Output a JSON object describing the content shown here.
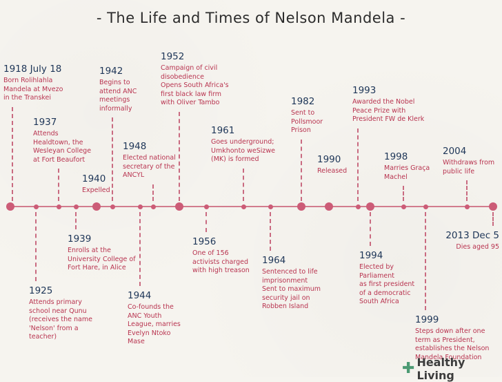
{
  "title": "- The Life and Times of Nelson Mandela -",
  "events": [
    {
      "year": "1918 July 18",
      "desc": [
        "Born Rolihlahla",
        "Mandela at Mvezo",
        "in the Transkei"
      ]
    },
    {
      "year": "1925",
      "desc": [
        "Attends primary",
        "school near Qunu",
        "(receives the name",
        "'Nelson' from a",
        "teacher)"
      ]
    },
    {
      "year": "1937",
      "desc": [
        "Attends",
        "Healdtown, the",
        "Wesleyan College",
        "at Fort Beaufort"
      ]
    },
    {
      "year": "1939",
      "desc": [
        "Enrolls at the",
        "University College of",
        "Fort Hare, in Alice"
      ]
    },
    {
      "year": "1940",
      "desc": [
        "Expelled"
      ]
    },
    {
      "year": "1942",
      "desc": [
        "Begins to",
        "attend ANC",
        "meetings",
        "informally"
      ]
    },
    {
      "year": "1944",
      "desc": [
        "Co-founds the",
        "ANC Youth",
        "League, marries",
        "Evelyn Ntoko",
        "Mase"
      ]
    },
    {
      "year": "1948",
      "desc": [
        "Elected national",
        "secretary of the",
        "ANCYL"
      ]
    },
    {
      "year": "1952",
      "desc": [
        "Campaign of civil",
        "disobedience",
        "Opens South Africa's",
        "first black law firm",
        "with Oliver Tambo"
      ]
    },
    {
      "year": "1956",
      "desc": [
        "One of 156",
        "activists charged",
        "with high treason"
      ]
    },
    {
      "year": "1961",
      "desc": [
        "Goes underground;",
        "Umkhonto weSizwe",
        "(MK) is formed"
      ]
    },
    {
      "year": "1964",
      "desc": [
        "Sentenced to life",
        "imprisonment",
        "Sent to maximum",
        "security jail on",
        "Robben Island"
      ]
    },
    {
      "year": "1982",
      "desc": [
        "Sent to",
        "Pollsmoor",
        "Prison"
      ]
    },
    {
      "year": "1990",
      "desc": [
        "Released"
      ]
    },
    {
      "year": "1993",
      "desc": [
        "Awarded the Nobel",
        "Peace Prize with",
        "President FW de Klerk"
      ]
    },
    {
      "year": "1994",
      "desc": [
        "Elected by",
        "Parliament",
        "as first president",
        "of a democratic",
        "South Africa"
      ]
    },
    {
      "year": "1998",
      "desc": [
        "Marries Graça",
        "Machel"
      ]
    },
    {
      "year": "1999",
      "desc": [
        "Steps down after one",
        "term as President,",
        "establishes the Nelson",
        "Mandela Foundation"
      ]
    },
    {
      "year": "2004",
      "desc": [
        "Withdraws from",
        "public life"
      ]
    },
    {
      "year": "2013 Dec 5",
      "desc": [
        "Dies aged 95"
      ]
    }
  ],
  "logo": {
    "text": "Healthy Living",
    "icon": "plus-icon"
  },
  "colors": {
    "axis": "#d27c8e",
    "marker": "#cc5c77",
    "year": "#1d3557",
    "desc": "#b8334f"
  }
}
